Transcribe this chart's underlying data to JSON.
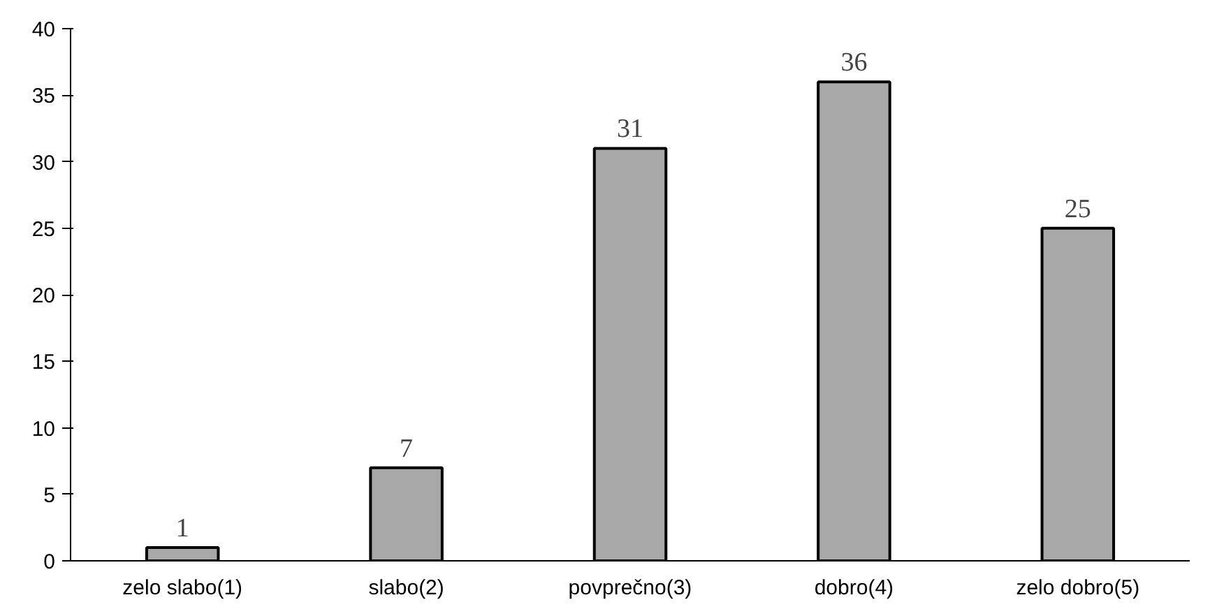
{
  "chart_data": {
    "type": "bar",
    "categories": [
      "zelo slabo(1)",
      "slabo(2)",
      "povprečno(3)",
      "dobro(4)",
      "zelo dobro(5)"
    ],
    "values": [
      1,
      7,
      31,
      36,
      25
    ],
    "color": "#a8a8a8",
    "ylim": [
      0,
      40
    ],
    "yticks": [
      0,
      5,
      10,
      15,
      20,
      25,
      30,
      35,
      40
    ],
    "grid": false,
    "data_labels": true
  }
}
